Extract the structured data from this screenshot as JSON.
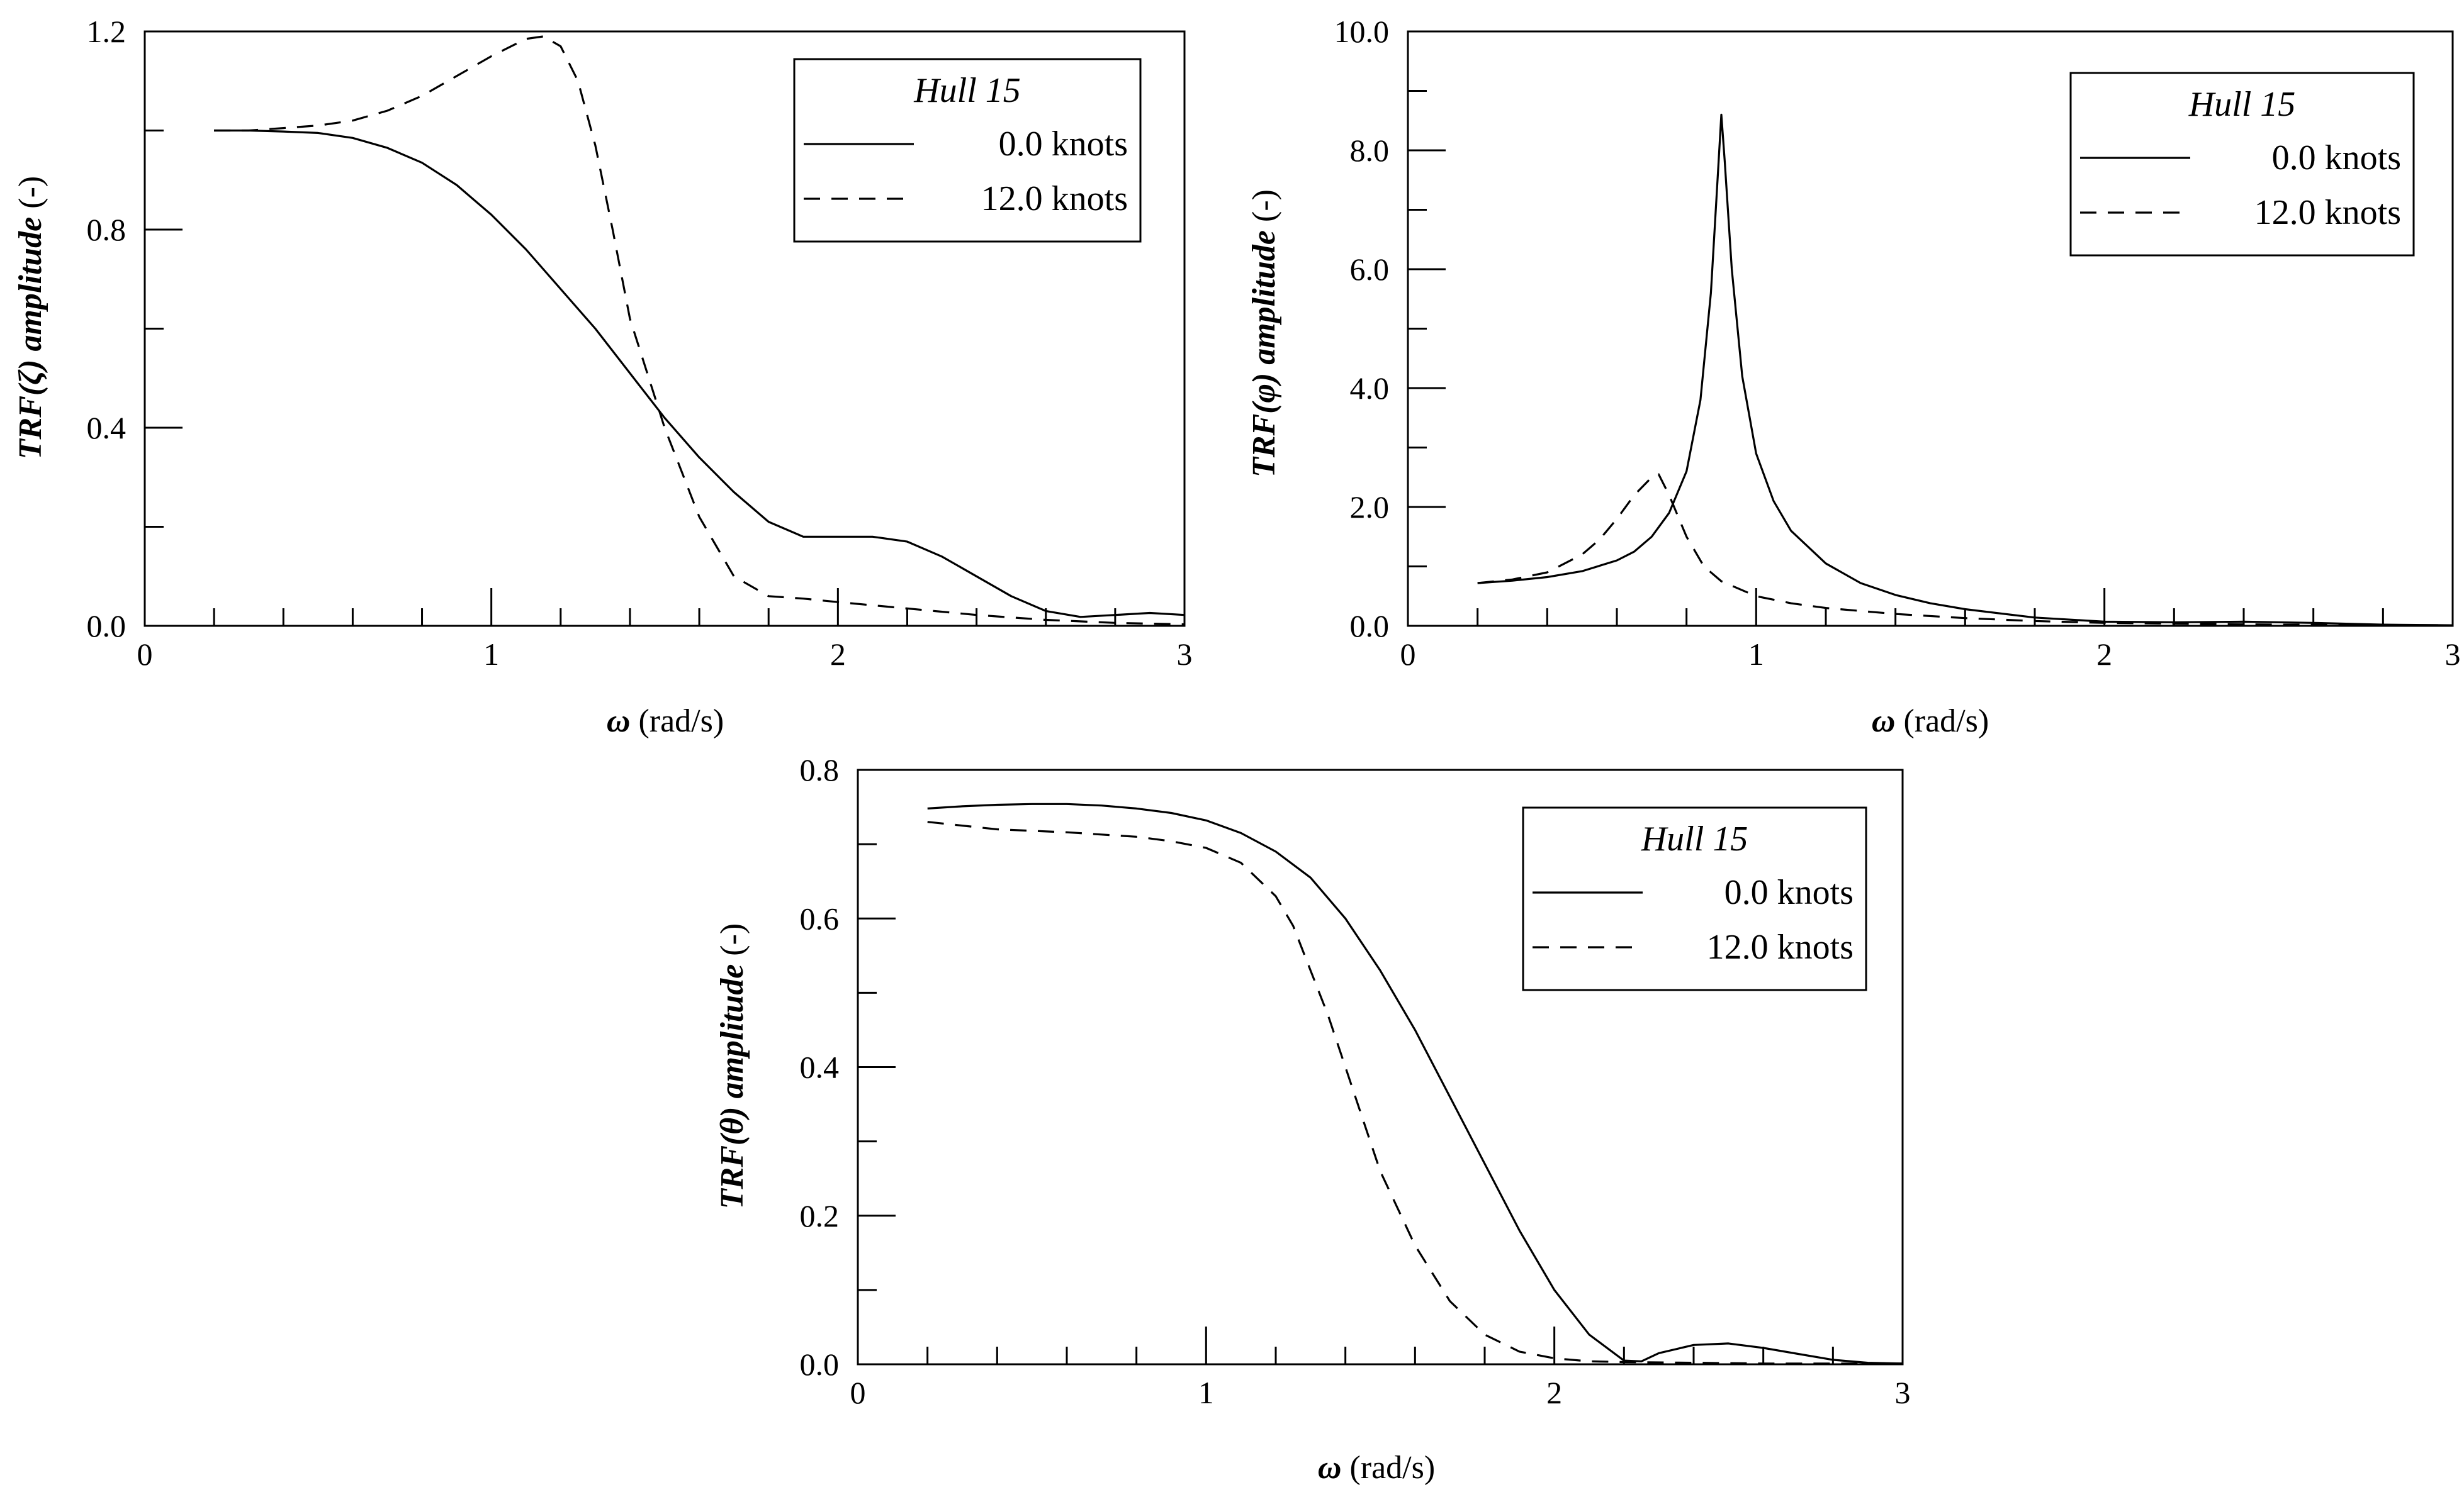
{
  "chart_data": [
    {
      "type": "line",
      "title": "",
      "xlabel_symbol": "ω",
      "xlabel_unit": "(rad/s)",
      "ylabel": "TRF(ζ) amplitude",
      "ylabel_unit": "(-)",
      "xlim": [
        0,
        3
      ],
      "ylim": [
        0,
        1.2
      ],
      "xticks": [
        0,
        1,
        2,
        3
      ],
      "xtick_labels": [
        "0",
        "1",
        "2",
        "3"
      ],
      "yticks": [
        0,
        0.4,
        0.8,
        1.2
      ],
      "ytick_labels": [
        "0.0",
        "0.4",
        "0.8",
        "1.2"
      ],
      "x_minor_step": 0.2,
      "y_minor_step": 0.2,
      "grid": false,
      "legend_position": "top-right",
      "legend_title": "Hull 15",
      "series": [
        {
          "name": "0.0 knots",
          "style": "solid",
          "x": [
            0.2,
            0.3,
            0.4,
            0.5,
            0.6,
            0.7,
            0.8,
            0.9,
            1.0,
            1.1,
            1.2,
            1.3,
            1.4,
            1.5,
            1.6,
            1.7,
            1.8,
            1.9,
            2.0,
            2.1,
            2.2,
            2.3,
            2.4,
            2.5,
            2.6,
            2.7,
            2.8,
            2.9,
            3.0
          ],
          "y": [
            1.0,
            1.0,
            0.998,
            0.995,
            0.985,
            0.965,
            0.935,
            0.89,
            0.83,
            0.76,
            0.68,
            0.6,
            0.51,
            0.42,
            0.34,
            0.27,
            0.21,
            0.18,
            0.18,
            0.18,
            0.17,
            0.14,
            0.1,
            0.06,
            0.03,
            0.018,
            0.022,
            0.026,
            0.022
          ]
        },
        {
          "name": "12.0 knots",
          "style": "dashed",
          "x": [
            0.2,
            0.3,
            0.4,
            0.5,
            0.6,
            0.7,
            0.8,
            0.9,
            1.0,
            1.1,
            1.15,
            1.2,
            1.25,
            1.3,
            1.35,
            1.4,
            1.5,
            1.6,
            1.7,
            1.8,
            1.9,
            2.0,
            2.2,
            2.4,
            2.6,
            2.8,
            3.0
          ],
          "y": [
            1.0,
            1.0,
            1.005,
            1.01,
            1.02,
            1.04,
            1.07,
            1.11,
            1.15,
            1.185,
            1.19,
            1.17,
            1.1,
            0.97,
            0.8,
            0.62,
            0.4,
            0.22,
            0.1,
            0.06,
            0.055,
            0.048,
            0.035,
            0.022,
            0.012,
            0.006,
            0.003
          ]
        }
      ]
    },
    {
      "type": "line",
      "title": "",
      "xlabel_symbol": "ω",
      "xlabel_unit": "(rad/s)",
      "ylabel": "TRF(φ) amplitude",
      "ylabel_unit": "(-)",
      "xlim": [
        0,
        3
      ],
      "ylim": [
        0,
        10
      ],
      "xticks": [
        0,
        1,
        2,
        3
      ],
      "xtick_labels": [
        "0",
        "1",
        "2",
        "3"
      ],
      "yticks": [
        0,
        2,
        4,
        6,
        8,
        10
      ],
      "ytick_labels": [
        "0.0",
        "2.0",
        "4.0",
        "6.0",
        "8.0",
        "10.0"
      ],
      "x_minor_step": 0.2,
      "y_minor_step": 1,
      "grid": false,
      "legend_position": "top-right",
      "legend_title": "Hull 15",
      "series": [
        {
          "name": "0.0 knots",
          "style": "solid",
          "x": [
            0.2,
            0.3,
            0.4,
            0.5,
            0.6,
            0.65,
            0.7,
            0.75,
            0.8,
            0.84,
            0.87,
            0.89,
            0.9,
            0.91,
            0.93,
            0.96,
            1.0,
            1.05,
            1.1,
            1.2,
            1.3,
            1.4,
            1.5,
            1.6,
            1.8,
            2.0,
            2.2,
            2.4,
            2.6,
            2.8,
            3.0
          ],
          "y": [
            0.72,
            0.76,
            0.82,
            0.92,
            1.1,
            1.25,
            1.5,
            1.9,
            2.6,
            3.8,
            5.6,
            7.6,
            8.6,
            7.8,
            6.0,
            4.2,
            2.9,
            2.1,
            1.6,
            1.05,
            0.72,
            0.52,
            0.38,
            0.28,
            0.14,
            0.07,
            0.06,
            0.07,
            0.05,
            0.02,
            0.01
          ]
        },
        {
          "name": "12.0 knots",
          "style": "dashed",
          "x": [
            0.2,
            0.3,
            0.4,
            0.5,
            0.55,
            0.6,
            0.65,
            0.7,
            0.72,
            0.75,
            0.8,
            0.85,
            0.9,
            1.0,
            1.1,
            1.2,
            1.4,
            1.6,
            1.8,
            2.0,
            2.5,
            3.0
          ],
          "y": [
            0.72,
            0.78,
            0.9,
            1.2,
            1.45,
            1.8,
            2.2,
            2.5,
            2.55,
            2.2,
            1.5,
            1.0,
            0.75,
            0.5,
            0.38,
            0.3,
            0.2,
            0.13,
            0.08,
            0.05,
            0.02,
            0.01
          ]
        }
      ]
    },
    {
      "type": "line",
      "title": "",
      "xlabel_symbol": "ω",
      "xlabel_unit": "(rad/s)",
      "ylabel": "TRF(θ) amplitude",
      "ylabel_unit": "(-)",
      "xlim": [
        0,
        3
      ],
      "ylim": [
        0,
        0.8
      ],
      "xticks": [
        0,
        1,
        2,
        3
      ],
      "xtick_labels": [
        "0",
        "1",
        "2",
        "3"
      ],
      "yticks": [
        0,
        0.2,
        0.4,
        0.6,
        0.8
      ],
      "ytick_labels": [
        "0.0",
        "0.2",
        "0.4",
        "0.6",
        "0.8"
      ],
      "x_minor_step": 0.2,
      "y_minor_step": 0.1,
      "grid": false,
      "legend_position": "top-right",
      "legend_title": "Hull 15",
      "series": [
        {
          "name": "0.0 knots",
          "style": "solid",
          "x": [
            0.2,
            0.3,
            0.4,
            0.5,
            0.6,
            0.7,
            0.8,
            0.9,
            1.0,
            1.1,
            1.2,
            1.3,
            1.4,
            1.5,
            1.6,
            1.7,
            1.8,
            1.9,
            2.0,
            2.1,
            2.2,
            2.25,
            2.3,
            2.4,
            2.5,
            2.6,
            2.7,
            2.8,
            2.9,
            3.0
          ],
          "y": [
            0.748,
            0.751,
            0.753,
            0.754,
            0.754,
            0.752,
            0.748,
            0.742,
            0.732,
            0.715,
            0.69,
            0.655,
            0.6,
            0.53,
            0.45,
            0.36,
            0.27,
            0.18,
            0.1,
            0.04,
            0.005,
            0.004,
            0.015,
            0.026,
            0.028,
            0.022,
            0.014,
            0.006,
            0.002,
            0.001
          ]
        },
        {
          "name": "12.0 knots",
          "style": "dashed",
          "x": [
            0.2,
            0.3,
            0.4,
            0.5,
            0.6,
            0.7,
            0.8,
            0.9,
            1.0,
            1.1,
            1.2,
            1.25,
            1.3,
            1.35,
            1.4,
            1.45,
            1.5,
            1.6,
            1.7,
            1.8,
            1.9,
            2.0,
            2.1,
            2.2,
            2.4,
            2.6,
            2.8,
            3.0
          ],
          "y": [
            0.73,
            0.725,
            0.72,
            0.718,
            0.716,
            0.713,
            0.71,
            0.704,
            0.695,
            0.675,
            0.63,
            0.59,
            0.53,
            0.47,
            0.4,
            0.33,
            0.26,
            0.16,
            0.085,
            0.04,
            0.017,
            0.008,
            0.004,
            0.003,
            0.002,
            0.001,
            0.001,
            0.001
          ]
        }
      ]
    }
  ]
}
